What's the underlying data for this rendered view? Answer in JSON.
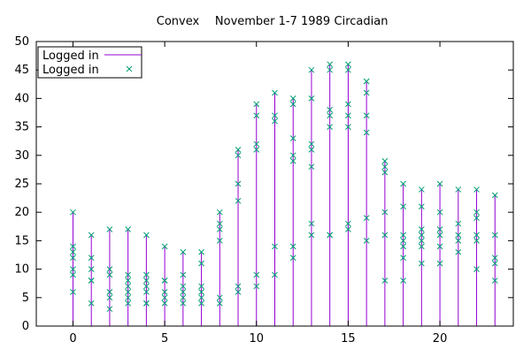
{
  "chart_data": {
    "type": "scatter",
    "title_parts": [
      "Convex",
      "November 1-7 1989",
      "Circadian"
    ],
    "xlim": [
      -2,
      24
    ],
    "ylim": [
      0,
      50
    ],
    "x_ticks": [
      0,
      5,
      10,
      15,
      20
    ],
    "y_ticks": [
      0,
      5,
      10,
      15,
      20,
      25,
      30,
      35,
      40,
      45,
      50
    ],
    "grid": false,
    "legend_position": "top-left",
    "series": [
      {
        "name": "Logged in",
        "style": "impulses",
        "color": "#9400d3",
        "points": [
          [
            0,
            20
          ],
          [
            1,
            16
          ],
          [
            2,
            17
          ],
          [
            3,
            17
          ],
          [
            4,
            16
          ],
          [
            5,
            14
          ],
          [
            6,
            13
          ],
          [
            7,
            13
          ],
          [
            8,
            20
          ],
          [
            9,
            31
          ],
          [
            10,
            39
          ],
          [
            11,
            41
          ],
          [
            12,
            40
          ],
          [
            13,
            45
          ],
          [
            14,
            46
          ],
          [
            15,
            46
          ],
          [
            16,
            43
          ],
          [
            17,
            29
          ],
          [
            18,
            25
          ],
          [
            19,
            24
          ],
          [
            20,
            25
          ],
          [
            21,
            24
          ],
          [
            22,
            24
          ],
          [
            23,
            23
          ]
        ]
      },
      {
        "name": "Logged in",
        "style": "points",
        "marker": "x",
        "color": "#009e73",
        "points": [
          [
            0,
            20
          ],
          [
            0,
            14
          ],
          [
            0,
            13
          ],
          [
            0,
            12
          ],
          [
            0,
            10
          ],
          [
            0,
            9
          ],
          [
            0,
            6
          ],
          [
            1,
            16
          ],
          [
            1,
            12
          ],
          [
            1,
            10
          ],
          [
            1,
            8
          ],
          [
            1,
            8
          ],
          [
            1,
            4
          ],
          [
            2,
            17
          ],
          [
            2,
            10
          ],
          [
            2,
            9
          ],
          [
            2,
            6
          ],
          [
            2,
            5
          ],
          [
            2,
            3
          ],
          [
            3,
            17
          ],
          [
            3,
            9
          ],
          [
            3,
            8
          ],
          [
            3,
            7
          ],
          [
            3,
            6
          ],
          [
            3,
            5
          ],
          [
            3,
            4
          ],
          [
            4,
            16
          ],
          [
            4,
            9
          ],
          [
            4,
            8
          ],
          [
            4,
            7
          ],
          [
            4,
            6
          ],
          [
            4,
            4
          ],
          [
            4,
            4
          ],
          [
            5,
            14
          ],
          [
            5,
            8
          ],
          [
            5,
            8
          ],
          [
            5,
            6
          ],
          [
            5,
            5
          ],
          [
            5,
            4
          ],
          [
            6,
            13
          ],
          [
            6,
            9
          ],
          [
            6,
            7
          ],
          [
            6,
            6
          ],
          [
            6,
            5
          ],
          [
            6,
            4
          ],
          [
            7,
            13
          ],
          [
            7,
            11
          ],
          [
            7,
            7
          ],
          [
            7,
            6
          ],
          [
            7,
            5
          ],
          [
            7,
            4
          ],
          [
            8,
            20
          ],
          [
            8,
            18
          ],
          [
            8,
            17
          ],
          [
            8,
            15
          ],
          [
            8,
            5
          ],
          [
            8,
            4
          ],
          [
            9,
            31
          ],
          [
            9,
            30
          ],
          [
            9,
            25
          ],
          [
            9,
            22
          ],
          [
            9,
            7
          ],
          [
            9,
            6
          ],
          [
            10,
            39
          ],
          [
            10,
            37
          ],
          [
            10,
            32
          ],
          [
            10,
            31
          ],
          [
            10,
            9
          ],
          [
            10,
            7
          ],
          [
            11,
            41
          ],
          [
            11,
            37
          ],
          [
            11,
            36
          ],
          [
            11,
            14
          ],
          [
            11,
            9
          ],
          [
            12,
            40
          ],
          [
            12,
            39
          ],
          [
            12,
            33
          ],
          [
            12,
            30
          ],
          [
            12,
            29
          ],
          [
            12,
            14
          ],
          [
            12,
            12
          ],
          [
            13,
            45
          ],
          [
            13,
            40
          ],
          [
            13,
            32
          ],
          [
            13,
            31
          ],
          [
            13,
            28
          ],
          [
            13,
            18
          ],
          [
            13,
            16
          ],
          [
            14,
            46
          ],
          [
            14,
            45
          ],
          [
            14,
            38
          ],
          [
            14,
            37
          ],
          [
            14,
            35
          ],
          [
            14,
            16
          ],
          [
            14,
            16
          ],
          [
            15,
            46
          ],
          [
            15,
            45
          ],
          [
            15,
            39
          ],
          [
            15,
            37
          ],
          [
            15,
            35
          ],
          [
            15,
            18
          ],
          [
            15,
            17
          ],
          [
            16,
            43
          ],
          [
            16,
            43
          ],
          [
            16,
            41
          ],
          [
            16,
            37
          ],
          [
            16,
            34
          ],
          [
            16,
            19
          ],
          [
            16,
            15
          ],
          [
            17,
            29
          ],
          [
            17,
            28
          ],
          [
            17,
            27
          ],
          [
            17,
            20
          ],
          [
            17,
            16
          ],
          [
            17,
            8
          ],
          [
            18,
            25
          ],
          [
            18,
            21
          ],
          [
            18,
            16
          ],
          [
            18,
            15
          ],
          [
            18,
            14
          ],
          [
            18,
            12
          ],
          [
            18,
            8
          ],
          [
            19,
            24
          ],
          [
            19,
            21
          ],
          [
            19,
            17
          ],
          [
            19,
            16
          ],
          [
            19,
            15
          ],
          [
            19,
            14
          ],
          [
            19,
            11
          ],
          [
            20,
            25
          ],
          [
            20,
            20
          ],
          [
            20,
            17
          ],
          [
            20,
            16
          ],
          [
            20,
            14
          ],
          [
            20,
            11
          ],
          [
            21,
            24
          ],
          [
            21,
            18
          ],
          [
            21,
            16
          ],
          [
            21,
            15
          ],
          [
            21,
            13
          ],
          [
            22,
            24
          ],
          [
            22,
            20
          ],
          [
            22,
            19
          ],
          [
            22,
            16
          ],
          [
            22,
            15
          ],
          [
            22,
            10
          ],
          [
            23,
            23
          ],
          [
            23,
            16
          ],
          [
            23,
            12
          ],
          [
            23,
            11
          ],
          [
            23,
            8
          ]
        ]
      }
    ]
  }
}
